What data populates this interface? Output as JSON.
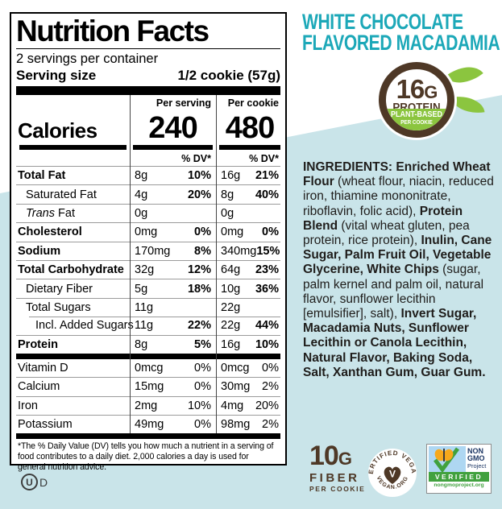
{
  "colors": {
    "accent_teal": "#1ca8b8",
    "background_blue": "#c9e4e9",
    "brand_brown": "#4e3826",
    "brand_green": "#8bc53f",
    "nongmo_navy": "#1c3664",
    "nongmo_green": "#41a13e",
    "nongmo_sky": "#aed7f2",
    "butterfly_orange": "#f6a81c"
  },
  "nutrition_panel": {
    "title": "Nutrition Facts",
    "servings_per_container": "2 servings per container",
    "serving_size_label": "Serving size",
    "serving_size_value": "1/2 cookie (57g)",
    "calories": {
      "label": "Calories",
      "per_serving_header": "Per serving",
      "per_cookie_header": "Per cookie",
      "per_serving": "240",
      "per_cookie": "480",
      "dv_header": "% DV*"
    },
    "rows": [
      {
        "name": "Total Fat",
        "bold": true,
        "indent": 0,
        "s_amt": "8g",
        "s_dv": "10%",
        "c_amt": "16g",
        "c_dv": "21%"
      },
      {
        "name": "Saturated Fat",
        "bold": false,
        "indent": 1,
        "s_amt": "4g",
        "s_dv": "20%",
        "c_amt": "8g",
        "c_dv": "40%"
      },
      {
        "name": "Trans Fat",
        "italic_word": "Trans",
        "bold": false,
        "indent": 1,
        "s_amt": "0g",
        "s_dv": "",
        "c_amt": "0g",
        "c_dv": ""
      },
      {
        "name": "Cholesterol",
        "bold": true,
        "indent": 0,
        "s_amt": "0mg",
        "s_dv": "0%",
        "c_amt": "0mg",
        "c_dv": "0%"
      },
      {
        "name": "Sodium",
        "bold": true,
        "indent": 0,
        "s_amt": "170mg",
        "s_dv": "8%",
        "c_amt": "340mg",
        "c_dv": "15%"
      },
      {
        "name": "Total Carbohydrate",
        "bold": true,
        "indent": 0,
        "s_amt": "32g",
        "s_dv": "12%",
        "c_amt": "64g",
        "c_dv": "23%"
      },
      {
        "name": "Dietary Fiber",
        "bold": false,
        "indent": 1,
        "s_amt": "5g",
        "s_dv": "18%",
        "c_amt": "10g",
        "c_dv": "36%"
      },
      {
        "name": "Total Sugars",
        "bold": false,
        "indent": 1,
        "s_amt": "11g",
        "s_dv": "",
        "c_amt": "22g",
        "c_dv": ""
      },
      {
        "name": "Incl. Added Sugars",
        "bold": false,
        "indent": 2,
        "indent_rule": true,
        "s_amt": "11g",
        "s_dv": "22%",
        "c_amt": "22g",
        "c_dv": "44%"
      },
      {
        "name": "Protein",
        "bold": true,
        "indent": 0,
        "s_amt": "8g",
        "s_dv": "5%",
        "c_amt": "16g",
        "c_dv": "10%"
      }
    ],
    "vitamin_rows": [
      {
        "name": "Vitamin D",
        "s_amt": "0mcg",
        "s_dv": "0%",
        "c_amt": "0mcg",
        "c_dv": "0%"
      },
      {
        "name": "Calcium",
        "s_amt": "15mg",
        "s_dv": "0%",
        "c_amt": "30mg",
        "c_dv": "2%"
      },
      {
        "name": "Iron",
        "s_amt": "2mg",
        "s_dv": "10%",
        "c_amt": "4mg",
        "c_dv": "20%"
      },
      {
        "name": "Potassium",
        "s_amt": "49mg",
        "s_dv": "0%",
        "c_amt": "98mg",
        "c_dv": "2%"
      }
    ],
    "footnote": "*The % Daily Value (DV) tells you how much a nutrient in a serving of food contributes to a daily diet. 2,000 calories a day is used for general nutrition advice."
  },
  "kosher": {
    "circle_letter": "U",
    "suffix": "D"
  },
  "product": {
    "title_line1": "WHITE CHOCOLATE",
    "title_line2": "FLAVORED MACADAMIA"
  },
  "protein_badge": {
    "amount": "16G",
    "label": "PROTEIN",
    "sub_line1": "PLANT-BASED",
    "sub_line2": "PER COOKIE"
  },
  "ingredients_segments": [
    {
      "text": "INGREDIENTS: Enriched Wheat Flour",
      "bold": true
    },
    {
      "text": " (wheat flour, niacin, reduced iron, thiamine mononitrate, riboflavin, folic acid), ",
      "bold": false
    },
    {
      "text": "Protein Blend",
      "bold": true
    },
    {
      "text": " (vital wheat gluten, pea protein, rice protein), ",
      "bold": false
    },
    {
      "text": "Inulin, Cane Sugar, Palm Fruit Oil, Vegetable Glycerine, White Chips",
      "bold": true
    },
    {
      "text": " (sugar, palm kernel and palm oil, natural flavor, sunflower lecithin [emulsifier], salt), ",
      "bold": false
    },
    {
      "text": "Invert Sugar, Macadamia Nuts, Sunflower Lecithin or Canola Lecithin, Natural Flavor, Baking Soda, Salt, Xanthan Gum, Guar Gum.",
      "bold": true
    }
  ],
  "fiber_badge": {
    "amount": "10G",
    "label": "FIBER",
    "sub": "PER COOKIE"
  },
  "vegan_logo": {
    "arc_top": "CERTIFIED VEGAN",
    "arc_bottom": "VEGAN.ORG",
    "center_letter": "V"
  },
  "non_gmo": {
    "line1": "NON",
    "line2": "GMO",
    "line3": "Project",
    "band": "VERIFIED",
    "url": "nongmoproject.org"
  }
}
